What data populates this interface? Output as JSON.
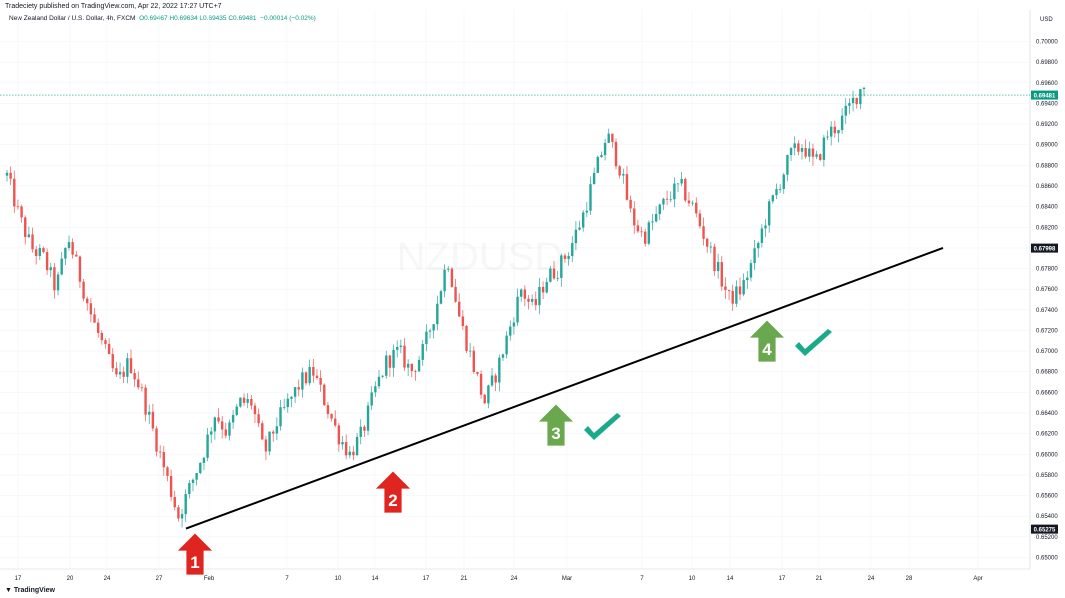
{
  "header": {
    "published": "Tradeciety published on TradingView.com, Apr 22, 2022 17:27 UTC+7",
    "symbol": "New Zealand Dollar / U.S. Dollar, 4h, FXCM",
    "ohlc": "O0.69467 H0.69634 L0.69435 C0.69481",
    "change": "−0.00014 (−0.02%)"
  },
  "watermark": "NZDUSD",
  "branding": "TradingView",
  "colors": {
    "up": "#26a69a",
    "down": "#ef5350",
    "last_price": "#089981",
    "trendline": "#000000",
    "arrow_red": "#e02420",
    "arrow_green": "#6aa84f",
    "check": "#1aaa8a"
  },
  "chart_data": {
    "type": "candlestick",
    "currency": "USD",
    "price_ticks": [
      "0.70000",
      "0.69800",
      "0.69600",
      "0.69400",
      "0.69200",
      "0.69000",
      "0.68800",
      "0.68600",
      "0.68400",
      "0.68200",
      "0.68000",
      "0.67800",
      "0.67600",
      "0.67400",
      "0.67200",
      "0.67000",
      "0.66800",
      "0.66600",
      "0.66400",
      "0.66200",
      "0.66000",
      "0.65800",
      "0.65600",
      "0.65400",
      "0.65200",
      "0.65000"
    ],
    "ylim": [
      0.649,
      0.702
    ],
    "x_ticks": [
      "17",
      "20",
      "24",
      "27",
      "Feb",
      "7",
      "10",
      "14",
      "17",
      "21",
      "24",
      "Mar",
      "7",
      "10",
      "14",
      "17",
      "21",
      "24",
      "28",
      "Apr"
    ],
    "last_price": "0.69481",
    "marked_prices": [
      "0.67998",
      "0.65275"
    ],
    "trendline": {
      "start": [
        "Jan 29",
        0.6528
      ],
      "end": [
        "Mar 30",
        0.68
      ]
    },
    "annotations": [
      {
        "label": "1",
        "color": "red",
        "direction": "up"
      },
      {
        "label": "2",
        "color": "red",
        "direction": "up"
      },
      {
        "label": "3",
        "color": "green",
        "direction": "up",
        "check": true
      },
      {
        "label": "4",
        "color": "green",
        "direction": "up",
        "check": true
      }
    ],
    "price_path": [
      [
        0.687,
        0.684
      ],
      [
        0.683,
        0.679
      ],
      [
        0.68,
        0.679
      ],
      [
        0.679,
        0.676
      ],
      [
        0.676,
        0.68
      ],
      [
        0.681,
        0.677
      ],
      [
        0.677,
        0.672
      ],
      [
        0.673,
        0.67
      ],
      [
        0.67,
        0.666
      ],
      [
        0.667,
        0.669
      ],
      [
        0.669,
        0.666
      ],
      [
        0.666,
        0.662
      ],
      [
        0.662,
        0.658
      ],
      [
        0.658,
        0.655
      ],
      [
        0.654,
        0.656
      ],
      [
        0.657,
        0.66
      ],
      [
        0.66,
        0.663
      ],
      [
        0.664,
        0.662
      ],
      [
        0.662,
        0.665
      ],
      [
        0.665,
        0.667
      ],
      [
        0.665,
        0.66
      ],
      [
        0.66,
        0.662
      ],
      [
        0.663,
        0.665
      ],
      [
        0.665,
        0.667
      ],
      [
        0.667,
        0.669
      ],
      [
        0.668,
        0.666
      ],
      [
        0.665,
        0.662
      ],
      [
        0.662,
        0.66
      ],
      [
        0.66,
        0.662
      ],
      [
        0.662,
        0.665
      ],
      [
        0.666,
        0.669
      ],
      [
        0.669,
        0.67
      ],
      [
        0.67,
        0.668
      ],
      [
        0.668,
        0.67
      ],
      [
        0.67,
        0.674
      ],
      [
        0.674,
        0.68
      ],
      [
        0.679,
        0.674
      ],
      [
        0.673,
        0.669
      ],
      [
        0.669,
        0.665
      ],
      [
        0.665,
        0.668
      ],
      [
        0.668,
        0.672
      ],
      [
        0.672,
        0.676
      ],
      [
        0.676,
        0.674
      ],
      [
        0.674,
        0.677
      ],
      [
        0.677,
        0.678
      ],
      [
        0.678,
        0.68
      ],
      [
        0.68,
        0.683
      ],
      [
        0.683,
        0.686
      ],
      [
        0.687,
        0.691
      ],
      [
        0.691,
        0.688
      ],
      [
        0.688,
        0.683
      ],
      [
        0.683,
        0.681
      ],
      [
        0.681,
        0.683
      ],
      [
        0.683,
        0.685
      ],
      [
        0.685,
        0.686
      ],
      [
        0.686,
        0.684
      ],
      [
        0.684,
        0.681
      ],
      [
        0.681,
        0.678
      ],
      [
        0.678,
        0.675
      ],
      [
        0.675,
        0.676
      ],
      [
        0.676,
        0.679
      ],
      [
        0.679,
        0.683
      ],
      [
        0.683,
        0.686
      ],
      [
        0.686,
        0.689
      ],
      [
        0.689,
        0.69
      ],
      [
        0.69,
        0.688
      ],
      [
        0.688,
        0.691
      ],
      [
        0.691,
        0.692
      ],
      [
        0.692,
        0.694
      ],
      [
        0.694,
        0.696
      ],
      [
        0.696,
        0.695
      ]
    ]
  }
}
